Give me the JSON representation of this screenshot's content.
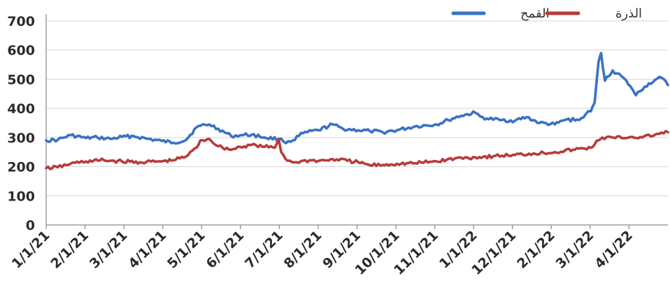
{
  "chart_data": {
    "type": "line",
    "title": "",
    "xlabel": "",
    "ylabel": "",
    "ylim": [
      0,
      700
    ],
    "yticks": [
      "0",
      "100",
      "200",
      "300",
      "400",
      "500",
      "600",
      "700"
    ],
    "xlim": [
      "1/1/21",
      "4/30/22"
    ],
    "categories": [
      "1/1/21",
      "2/1/21",
      "3/1/21",
      "4/1/21",
      "5/1/21",
      "6/1/21",
      "7/1/21",
      "8/1/21",
      "9/1/21",
      "10/1/21",
      "11/1/21",
      "1/1/22",
      "12/1/21",
      "2/1/22",
      "3/1/22",
      "4/1/22"
    ],
    "grid": true,
    "legend_position": "top-right",
    "series": [
      {
        "name": "القمح",
        "color": "#3a72c4",
        "points": [
          [
            "1/1/21",
            290
          ],
          [
            "1/10/21",
            292
          ],
          [
            "1/20/21",
            308
          ],
          [
            "2/1/21",
            298
          ],
          [
            "2/10/21",
            300
          ],
          [
            "2/20/21",
            295
          ],
          [
            "3/1/21",
            302
          ],
          [
            "3/10/21",
            305
          ],
          [
            "3/20/21",
            296
          ],
          [
            "4/1/21",
            288
          ],
          [
            "4/10/21",
            282
          ],
          [
            "4/20/21",
            292
          ],
          [
            "4/28/21",
            335
          ],
          [
            "5/1/21",
            340
          ],
          [
            "5/8/21",
            345
          ],
          [
            "5/15/21",
            330
          ],
          [
            "5/25/21",
            305
          ],
          [
            "6/1/21",
            308
          ],
          [
            "6/10/21",
            310
          ],
          [
            "6/20/21",
            300
          ],
          [
            "7/1/21",
            295
          ],
          [
            "7/5/21",
            285
          ],
          [
            "7/12/21",
            290
          ],
          [
            "7/20/21",
            315
          ],
          [
            "8/1/21",
            325
          ],
          [
            "8/12/21",
            345
          ],
          [
            "8/20/21",
            330
          ],
          [
            "9/1/21",
            325
          ],
          [
            "9/10/21",
            322
          ],
          [
            "9/20/21",
            318
          ],
          [
            "10/1/21",
            325
          ],
          [
            "10/15/21",
            338
          ],
          [
            "11/1/21",
            345
          ],
          [
            "11/10/21",
            360
          ],
          [
            "11/20/21",
            375
          ],
          [
            "12/1/21",
            385
          ],
          [
            "12/5/21",
            372
          ],
          [
            "12/10/21",
            365
          ],
          [
            "12/20/21",
            360
          ],
          [
            "1/1/22",
            358
          ],
          [
            "1/10/22",
            370
          ],
          [
            "1/20/22",
            350
          ],
          [
            "2/1/22",
            345
          ],
          [
            "2/10/22",
            362
          ],
          [
            "2/20/22",
            360
          ],
          [
            "2/25/22",
            380
          ],
          [
            "3/1/22",
            390
          ],
          [
            "3/4/22",
            420
          ],
          [
            "3/7/22",
            560
          ],
          [
            "3/9/22",
            590
          ],
          [
            "3/12/22",
            495
          ],
          [
            "3/18/22",
            530
          ],
          [
            "3/25/22",
            510
          ],
          [
            "4/1/22",
            475
          ],
          [
            "4/5/22",
            445
          ],
          [
            "4/12/22",
            475
          ],
          [
            "4/20/22",
            498
          ],
          [
            "4/25/22",
            505
          ],
          [
            "4/30/22",
            480
          ]
        ]
      },
      {
        "name": "الذرة",
        "color": "#b73b3b",
        "points": [
          [
            "1/1/21",
            195
          ],
          [
            "1/10/21",
            198
          ],
          [
            "1/20/21",
            210
          ],
          [
            "2/1/21",
            218
          ],
          [
            "2/15/21",
            222
          ],
          [
            "3/1/21",
            218
          ],
          [
            "3/15/21",
            215
          ],
          [
            "4/1/21",
            218
          ],
          [
            "4/10/21",
            222
          ],
          [
            "4/20/21",
            235
          ],
          [
            "4/28/21",
            265
          ],
          [
            "5/1/21",
            290
          ],
          [
            "5/8/21",
            295
          ],
          [
            "5/15/21",
            270
          ],
          [
            "5/25/21",
            258
          ],
          [
            "6/1/21",
            268
          ],
          [
            "6/10/21",
            275
          ],
          [
            "6/20/21",
            268
          ],
          [
            "6/28/21",
            265
          ],
          [
            "7/1/21",
            295
          ],
          [
            "7/3/21",
            250
          ],
          [
            "7/8/21",
            220
          ],
          [
            "7/15/21",
            215
          ],
          [
            "7/25/21",
            222
          ],
          [
            "8/1/21",
            220
          ],
          [
            "8/15/21",
            225
          ],
          [
            "9/1/21",
            215
          ],
          [
            "9/10/21",
            205
          ],
          [
            "9/20/21",
            206
          ],
          [
            "10/1/21",
            210
          ],
          [
            "10/15/21",
            212
          ],
          [
            "11/1/21",
            218
          ],
          [
            "11/15/21",
            228
          ],
          [
            "12/1/21",
            232
          ],
          [
            "12/15/21",
            236
          ],
          [
            "1/1/22",
            240
          ],
          [
            "1/15/22",
            245
          ],
          [
            "2/1/22",
            250
          ],
          [
            "2/15/22",
            258
          ],
          [
            "3/1/22",
            265
          ],
          [
            "3/7/22",
            290
          ],
          [
            "3/10/22",
            300
          ],
          [
            "3/20/22",
            298
          ],
          [
            "4/1/22",
            302
          ],
          [
            "4/10/22",
            300
          ],
          [
            "4/20/22",
            310
          ],
          [
            "4/30/22",
            318
          ]
        ]
      }
    ]
  }
}
